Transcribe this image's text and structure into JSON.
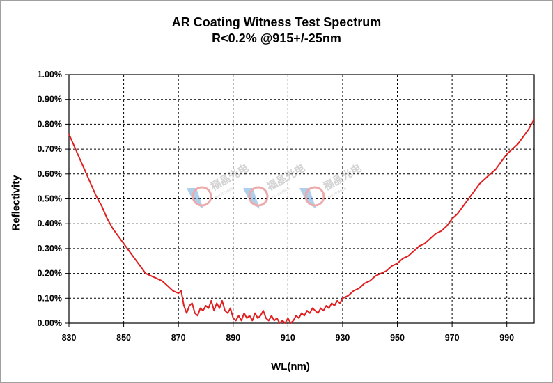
{
  "chart_data": {
    "type": "line",
    "title": "AR Coating Witness Test Spectrum",
    "subtitle": "R<0.2% @915+/-25nm",
    "xlabel": "WL(nm)",
    "ylabel": "Reflectivity",
    "xlim": [
      830,
      1000
    ],
    "ylim": [
      0,
      1.0
    ],
    "x_ticks": [
      830,
      850,
      870,
      890,
      910,
      930,
      950,
      970,
      990
    ],
    "y_ticks": [
      0,
      0.1,
      0.2,
      0.3,
      0.4,
      0.5,
      0.6,
      0.7,
      0.8,
      0.9,
      1.0
    ],
    "x_tick_labels": [
      "830",
      "850",
      "870",
      "890",
      "910",
      "930",
      "950",
      "970",
      "990"
    ],
    "y_tick_labels": [
      "0.00%",
      "0.10%",
      "0.20%",
      "0.30%",
      "0.40%",
      "0.50%",
      "0.60%",
      "0.70%",
      "0.80%",
      "0.90%",
      "1.00%"
    ],
    "grid": true,
    "series": [
      {
        "color": "#e02020",
        "x": [
          830,
          832,
          834,
          836,
          838,
          840,
          842,
          844,
          846,
          848,
          850,
          852,
          854,
          856,
          858,
          860,
          862,
          864,
          866,
          868,
          870,
          871,
          872,
          873,
          874,
          875,
          876,
          877,
          878,
          879,
          880,
          881,
          882,
          883,
          884,
          885,
          886,
          887,
          888,
          889,
          890,
          891,
          892,
          893,
          894,
          895,
          896,
          897,
          898,
          899,
          900,
          901,
          902,
          903,
          904,
          905,
          906,
          907,
          908,
          909,
          910,
          911,
          912,
          913,
          914,
          915,
          916,
          917,
          918,
          919,
          920,
          921,
          922,
          923,
          924,
          925,
          926,
          927,
          928,
          929,
          930,
          932,
          934,
          936,
          938,
          940,
          942,
          944,
          946,
          948,
          950,
          952,
          954,
          956,
          958,
          960,
          962,
          964,
          966,
          968,
          970,
          972,
          974,
          976,
          978,
          980,
          982,
          984,
          986,
          988,
          990,
          992,
          994,
          996,
          998,
          1000
        ],
        "y": [
          0.76,
          0.71,
          0.66,
          0.61,
          0.56,
          0.51,
          0.47,
          0.42,
          0.38,
          0.35,
          0.32,
          0.29,
          0.26,
          0.23,
          0.2,
          0.19,
          0.18,
          0.17,
          0.15,
          0.13,
          0.12,
          0.13,
          0.07,
          0.04,
          0.07,
          0.08,
          0.04,
          0.03,
          0.06,
          0.05,
          0.07,
          0.06,
          0.09,
          0.05,
          0.08,
          0.06,
          0.09,
          0.05,
          0.04,
          0.06,
          0.02,
          0.01,
          0.03,
          0.01,
          0.04,
          0.02,
          0.03,
          0.01,
          0.04,
          0.02,
          0.03,
          0.05,
          0.02,
          0.01,
          0.03,
          0.01,
          0.02,
          0.0,
          0.01,
          0.0,
          0.02,
          0.0,
          0.01,
          0.03,
          0.02,
          0.04,
          0.03,
          0.05,
          0.04,
          0.06,
          0.05,
          0.04,
          0.06,
          0.05,
          0.07,
          0.06,
          0.08,
          0.07,
          0.09,
          0.08,
          0.1,
          0.11,
          0.13,
          0.14,
          0.16,
          0.17,
          0.19,
          0.2,
          0.21,
          0.23,
          0.24,
          0.26,
          0.27,
          0.29,
          0.31,
          0.32,
          0.34,
          0.36,
          0.37,
          0.39,
          0.42,
          0.44,
          0.47,
          0.5,
          0.53,
          0.56,
          0.58,
          0.6,
          0.62,
          0.65,
          0.68,
          0.7,
          0.72,
          0.75,
          0.78,
          0.82
        ]
      }
    ]
  },
  "watermark": {
    "text": "福晶光电",
    "subtext": "PHOTONICS"
  }
}
